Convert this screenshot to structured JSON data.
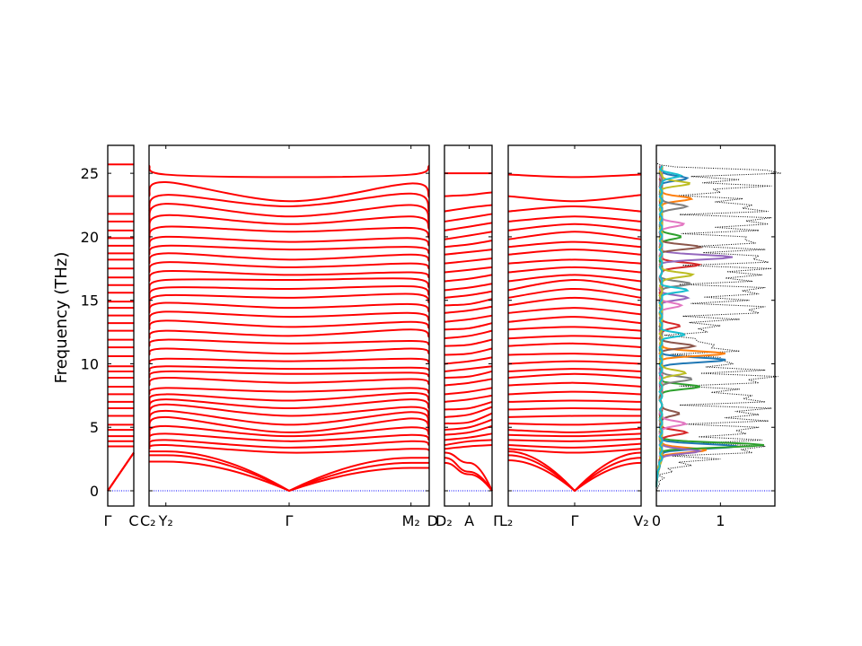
{
  "chart_data": {
    "type": "line",
    "title": "",
    "ylabel": "Frequency (THz)",
    "ylim": [
      -1.2,
      27.2
    ],
    "yticks": [
      0,
      5,
      10,
      15,
      20,
      25
    ],
    "colors": {
      "bands": "#ff0000",
      "zero_line": "#0000ff",
      "dos_total": "#000000",
      "dos_partial": [
        "#1f77b4",
        "#ff7f0e",
        "#2ca02c",
        "#d62728",
        "#9467bd",
        "#8c564b",
        "#e377c2",
        "#7f7f7f",
        "#bcbd22",
        "#17becf"
      ]
    },
    "band_segments": [
      {
        "id": "seg1",
        "path": [
          "Γ",
          "C"
        ],
        "labels": [
          "Γ",
          "C"
        ],
        "low_mode_ends": [
          [
            0,
            3.0
          ],
          [
            0,
            3.0
          ],
          [
            0,
            3.0
          ]
        ],
        "flat_levels": [
          3.5,
          3.9,
          4.3,
          4.8,
          5.2,
          5.9,
          6.5,
          7.0,
          7.6,
          8.2,
          8.9,
          9.4,
          9.8,
          10.6,
          11.3,
          11.9,
          12.6,
          13.2,
          13.8,
          14.4,
          14.9,
          15.6,
          16.2,
          16.8,
          17.5,
          18.2,
          18.7,
          19.3,
          19.9,
          20.5,
          21.2,
          21.8,
          23.2,
          25.7
        ]
      },
      {
        "id": "seg2",
        "path": [
          "C2",
          "Y2",
          "Γ",
          "M2",
          "D"
        ],
        "labels": [
          "C₂",
          "Y₂",
          "Γ",
          "M₂",
          "D"
        ],
        "acoustic_ends": [
          [
            3.1,
            0,
            2.6
          ],
          [
            2.8,
            0,
            2.2
          ],
          [
            2.3,
            0,
            1.8
          ]
        ],
        "optical_modes": [
          [
            3.3,
            3.6,
            3.0,
            3.3,
            3.2
          ],
          [
            3.6,
            4.0,
            3.4,
            3.9,
            3.6
          ],
          [
            4.0,
            4.5,
            3.9,
            4.4,
            4.0
          ],
          [
            4.4,
            5.1,
            4.3,
            5.0,
            4.4
          ],
          [
            4.8,
            5.8,
            4.6,
            5.7,
            4.8
          ],
          [
            5.3,
            6.3,
            5.2,
            6.2,
            5.3
          ],
          [
            5.8,
            6.8,
            5.9,
            6.6,
            5.9
          ],
          [
            6.4,
            7.2,
            6.5,
            7.2,
            6.5
          ],
          [
            7.0,
            7.6,
            7.1,
            7.7,
            7.1
          ],
          [
            7.6,
            8.1,
            7.8,
            8.1,
            7.7
          ],
          [
            8.3,
            8.9,
            8.5,
            8.8,
            8.4
          ],
          [
            8.9,
            9.4,
            9.2,
            9.3,
            9.0
          ],
          [
            9.4,
            9.8,
            9.6,
            9.7,
            9.5
          ],
          [
            10.0,
            10.4,
            10.2,
            10.4,
            10.1
          ],
          [
            10.7,
            11.2,
            10.8,
            11.2,
            10.8
          ],
          [
            11.4,
            11.9,
            11.6,
            11.8,
            11.5
          ],
          [
            12.0,
            12.6,
            12.2,
            12.7,
            12.1
          ],
          [
            12.7,
            13.4,
            12.9,
            13.3,
            12.8
          ],
          [
            13.3,
            14.1,
            13.7,
            14.0,
            13.4
          ],
          [
            14.0,
            14.8,
            14.4,
            14.7,
            14.1
          ],
          [
            14.6,
            15.4,
            15.2,
            15.5,
            14.8
          ],
          [
            15.2,
            16.0,
            15.9,
            16.1,
            15.4
          ],
          [
            15.8,
            16.6,
            16.6,
            16.7,
            16.0
          ],
          [
            16.5,
            17.3,
            17.0,
            17.2,
            16.8
          ],
          [
            17.2,
            18.0,
            17.6,
            17.9,
            17.5
          ],
          [
            17.9,
            18.7,
            18.2,
            18.6,
            18.1
          ],
          [
            18.6,
            19.3,
            19.0,
            19.2,
            18.7
          ],
          [
            19.2,
            20.0,
            19.6,
            19.9,
            19.3
          ],
          [
            19.8,
            20.8,
            20.4,
            20.7,
            19.9
          ],
          [
            20.5,
            21.7,
            21.0,
            21.6,
            20.6
          ],
          [
            21.2,
            22.6,
            21.6,
            22.5,
            21.2
          ],
          [
            22.0,
            23.3,
            22.4,
            23.4,
            22.0
          ],
          [
            23.2,
            24.3,
            22.8,
            24.2,
            23.1
          ],
          [
            25.6,
            24.9,
            24.7,
            24.9,
            25.6
          ]
        ]
      },
      {
        "id": "seg3",
        "path": [
          "D2",
          "A",
          "Γ"
        ],
        "labels": [
          "D₂",
          "A",
          "Γ"
        ],
        "acoustic_ends": [
          [
            3.0,
            2.2,
            0
          ],
          [
            2.6,
            1.5,
            0
          ],
          [
            2.2,
            1.3,
            0
          ]
        ],
        "optical_modes": [
          [
            3.3,
            3.5,
            3.6
          ],
          [
            3.6,
            3.9,
            4.0
          ],
          [
            4.0,
            4.2,
            4.5
          ],
          [
            4.4,
            4.6,
            5.1
          ],
          [
            4.8,
            5.0,
            5.6
          ],
          [
            5.3,
            5.4,
            6.1
          ],
          [
            5.8,
            6.0,
            6.6
          ],
          [
            6.4,
            6.5,
            7.0
          ],
          [
            7.0,
            7.2,
            7.5
          ],
          [
            7.6,
            7.8,
            8.1
          ],
          [
            8.3,
            8.5,
            8.8
          ],
          [
            8.9,
            9.0,
            9.4
          ],
          [
            9.4,
            9.6,
            9.8
          ],
          [
            10.0,
            10.2,
            10.5
          ],
          [
            10.7,
            10.8,
            11.2
          ],
          [
            11.4,
            11.5,
            11.9
          ],
          [
            12.0,
            12.2,
            12.6
          ],
          [
            12.7,
            12.8,
            13.2
          ],
          [
            13.3,
            13.5,
            13.8
          ],
          [
            14.0,
            14.2,
            14.5
          ],
          [
            14.6,
            14.7,
            15.1
          ],
          [
            15.2,
            15.4,
            15.7
          ],
          [
            15.8,
            16.0,
            16.3
          ],
          [
            16.5,
            16.7,
            17.0
          ],
          [
            17.2,
            17.4,
            17.6
          ],
          [
            17.9,
            18.1,
            18.3
          ],
          [
            18.6,
            18.8,
            19.0
          ],
          [
            19.2,
            19.4,
            19.7
          ],
          [
            19.8,
            20.1,
            20.4
          ],
          [
            20.5,
            20.8,
            21.1
          ],
          [
            21.2,
            21.5,
            21.8
          ],
          [
            22.0,
            22.3,
            22.5
          ],
          [
            23.2,
            23.3,
            23.5
          ],
          [
            25.0,
            25.0,
            25.0
          ]
        ]
      },
      {
        "id": "seg4",
        "path": [
          "L2",
          "Γ",
          "V2"
        ],
        "labels": [
          "L₂",
          "Γ",
          "V₂"
        ],
        "acoustic_ends": [
          [
            3.1,
            0,
            3.0
          ],
          [
            2.8,
            0,
            2.6
          ],
          [
            2.4,
            0,
            2.2
          ]
        ],
        "optical_modes": [
          [
            3.3,
            3.0,
            3.3
          ],
          [
            3.6,
            3.4,
            3.7
          ],
          [
            4.0,
            3.9,
            4.1
          ],
          [
            4.4,
            4.3,
            4.5
          ],
          [
            4.8,
            4.6,
            4.9
          ],
          [
            5.3,
            5.2,
            5.4
          ],
          [
            5.8,
            5.9,
            5.9
          ],
          [
            6.4,
            6.5,
            6.4
          ],
          [
            7.0,
            7.1,
            7.0
          ],
          [
            7.6,
            7.8,
            7.6
          ],
          [
            8.3,
            8.5,
            8.2
          ],
          [
            8.9,
            9.2,
            8.9
          ],
          [
            9.4,
            9.6,
            9.4
          ],
          [
            10.0,
            10.2,
            10.0
          ],
          [
            10.7,
            10.8,
            10.6
          ],
          [
            11.4,
            11.6,
            11.3
          ],
          [
            12.0,
            12.2,
            12.0
          ],
          [
            12.7,
            12.9,
            12.6
          ],
          [
            13.3,
            13.7,
            13.2
          ],
          [
            14.0,
            14.4,
            13.9
          ],
          [
            14.6,
            15.2,
            14.6
          ],
          [
            15.2,
            15.9,
            15.2
          ],
          [
            15.8,
            16.6,
            15.8
          ],
          [
            16.5,
            17.0,
            16.5
          ],
          [
            17.2,
            17.6,
            17.2
          ],
          [
            17.9,
            18.2,
            17.9
          ],
          [
            18.6,
            19.0,
            18.6
          ],
          [
            19.2,
            19.6,
            19.2
          ],
          [
            19.8,
            20.4,
            19.8
          ],
          [
            20.5,
            21.0,
            20.5
          ],
          [
            21.2,
            21.6,
            21.2
          ],
          [
            22.0,
            22.4,
            22.0
          ],
          [
            23.2,
            22.8,
            23.3
          ],
          [
            24.9,
            24.7,
            24.9
          ]
        ]
      }
    ],
    "dos": {
      "xlim": [
        0,
        1.85
      ],
      "xticks": [
        0,
        1
      ],
      "x_tick_labels": [
        "0",
        "1"
      ],
      "total_dos_frequencies": [
        -0.5,
        0.5,
        1.0,
        1.5,
        2.0,
        2.5,
        3.0,
        3.5,
        4.0,
        4.5,
        5.0,
        5.5,
        6.0,
        6.5,
        7.0,
        7.5,
        8.0,
        8.5,
        9.0,
        9.5,
        10.0,
        10.5,
        11.0,
        11.5,
        12.0,
        12.5,
        13.0,
        13.5,
        14.0,
        14.5,
        15.0,
        15.5,
        16.0,
        16.5,
        17.0,
        17.5,
        18.0,
        18.5,
        19.0,
        19.5,
        20.0,
        20.5,
        21.0,
        21.5,
        22.0,
        22.5,
        23.0,
        23.5,
        24.0,
        24.5,
        25.0,
        25.5,
        25.8
      ],
      "total_dos_values": [
        0,
        0.05,
        0.12,
        0.25,
        0.55,
        1.0,
        1.5,
        1.7,
        1.65,
        1.4,
        1.6,
        1.75,
        1.6,
        1.8,
        1.7,
        1.5,
        1.3,
        1.6,
        1.9,
        1.7,
        1.2,
        1.0,
        1.3,
        0.9,
        0.6,
        0.8,
        1.0,
        1.3,
        1.6,
        1.7,
        1.45,
        1.6,
        1.7,
        1.5,
        1.65,
        1.8,
        1.75,
        1.6,
        1.7,
        1.55,
        1.4,
        1.6,
        1.75,
        1.8,
        1.75,
        1.5,
        1.35,
        1.0,
        1.8,
        1.3,
        1.95,
        0.3,
        0
      ],
      "partial_peaks": [
        {
          "name": "",
          "freq": [
            3.5,
            10.3,
            24.6
          ],
          "height": [
            1.2,
            1.0,
            0.4
          ]
        },
        {
          "name": "",
          "freq": [
            3.2,
            10.8,
            23.0
          ],
          "height": [
            0.7,
            1.0,
            0.5
          ]
        },
        {
          "name": "",
          "freq": [
            3.6,
            8.2,
            20.0
          ],
          "height": [
            1.6,
            0.6,
            0.3
          ]
        },
        {
          "name": "",
          "freq": [
            4.6,
            13.0,
            17.8
          ],
          "height": [
            0.4,
            0.3,
            0.6
          ]
        },
        {
          "name": "",
          "freq": [
            3.1,
            15.2,
            18.4
          ],
          "height": [
            0.6,
            0.4,
            1.1
          ]
        },
        {
          "name": "",
          "freq": [
            6.1,
            11.4,
            19.2
          ],
          "height": [
            0.3,
            0.5,
            0.6
          ]
        },
        {
          "name": "",
          "freq": [
            5.3,
            14.6,
            21.0
          ],
          "height": [
            0.4,
            0.3,
            0.35
          ]
        },
        {
          "name": "",
          "freq": [
            8.8,
            16.3,
            22.4
          ],
          "height": [
            0.5,
            0.45,
            0.4
          ]
        },
        {
          "name": "",
          "freq": [
            9.3,
            17.0,
            24.2
          ],
          "height": [
            0.4,
            0.5,
            0.45
          ]
        },
        {
          "name": "",
          "freq": [
            12.3,
            15.8,
            24.8
          ],
          "height": [
            0.35,
            0.4,
            0.3
          ]
        }
      ]
    }
  }
}
